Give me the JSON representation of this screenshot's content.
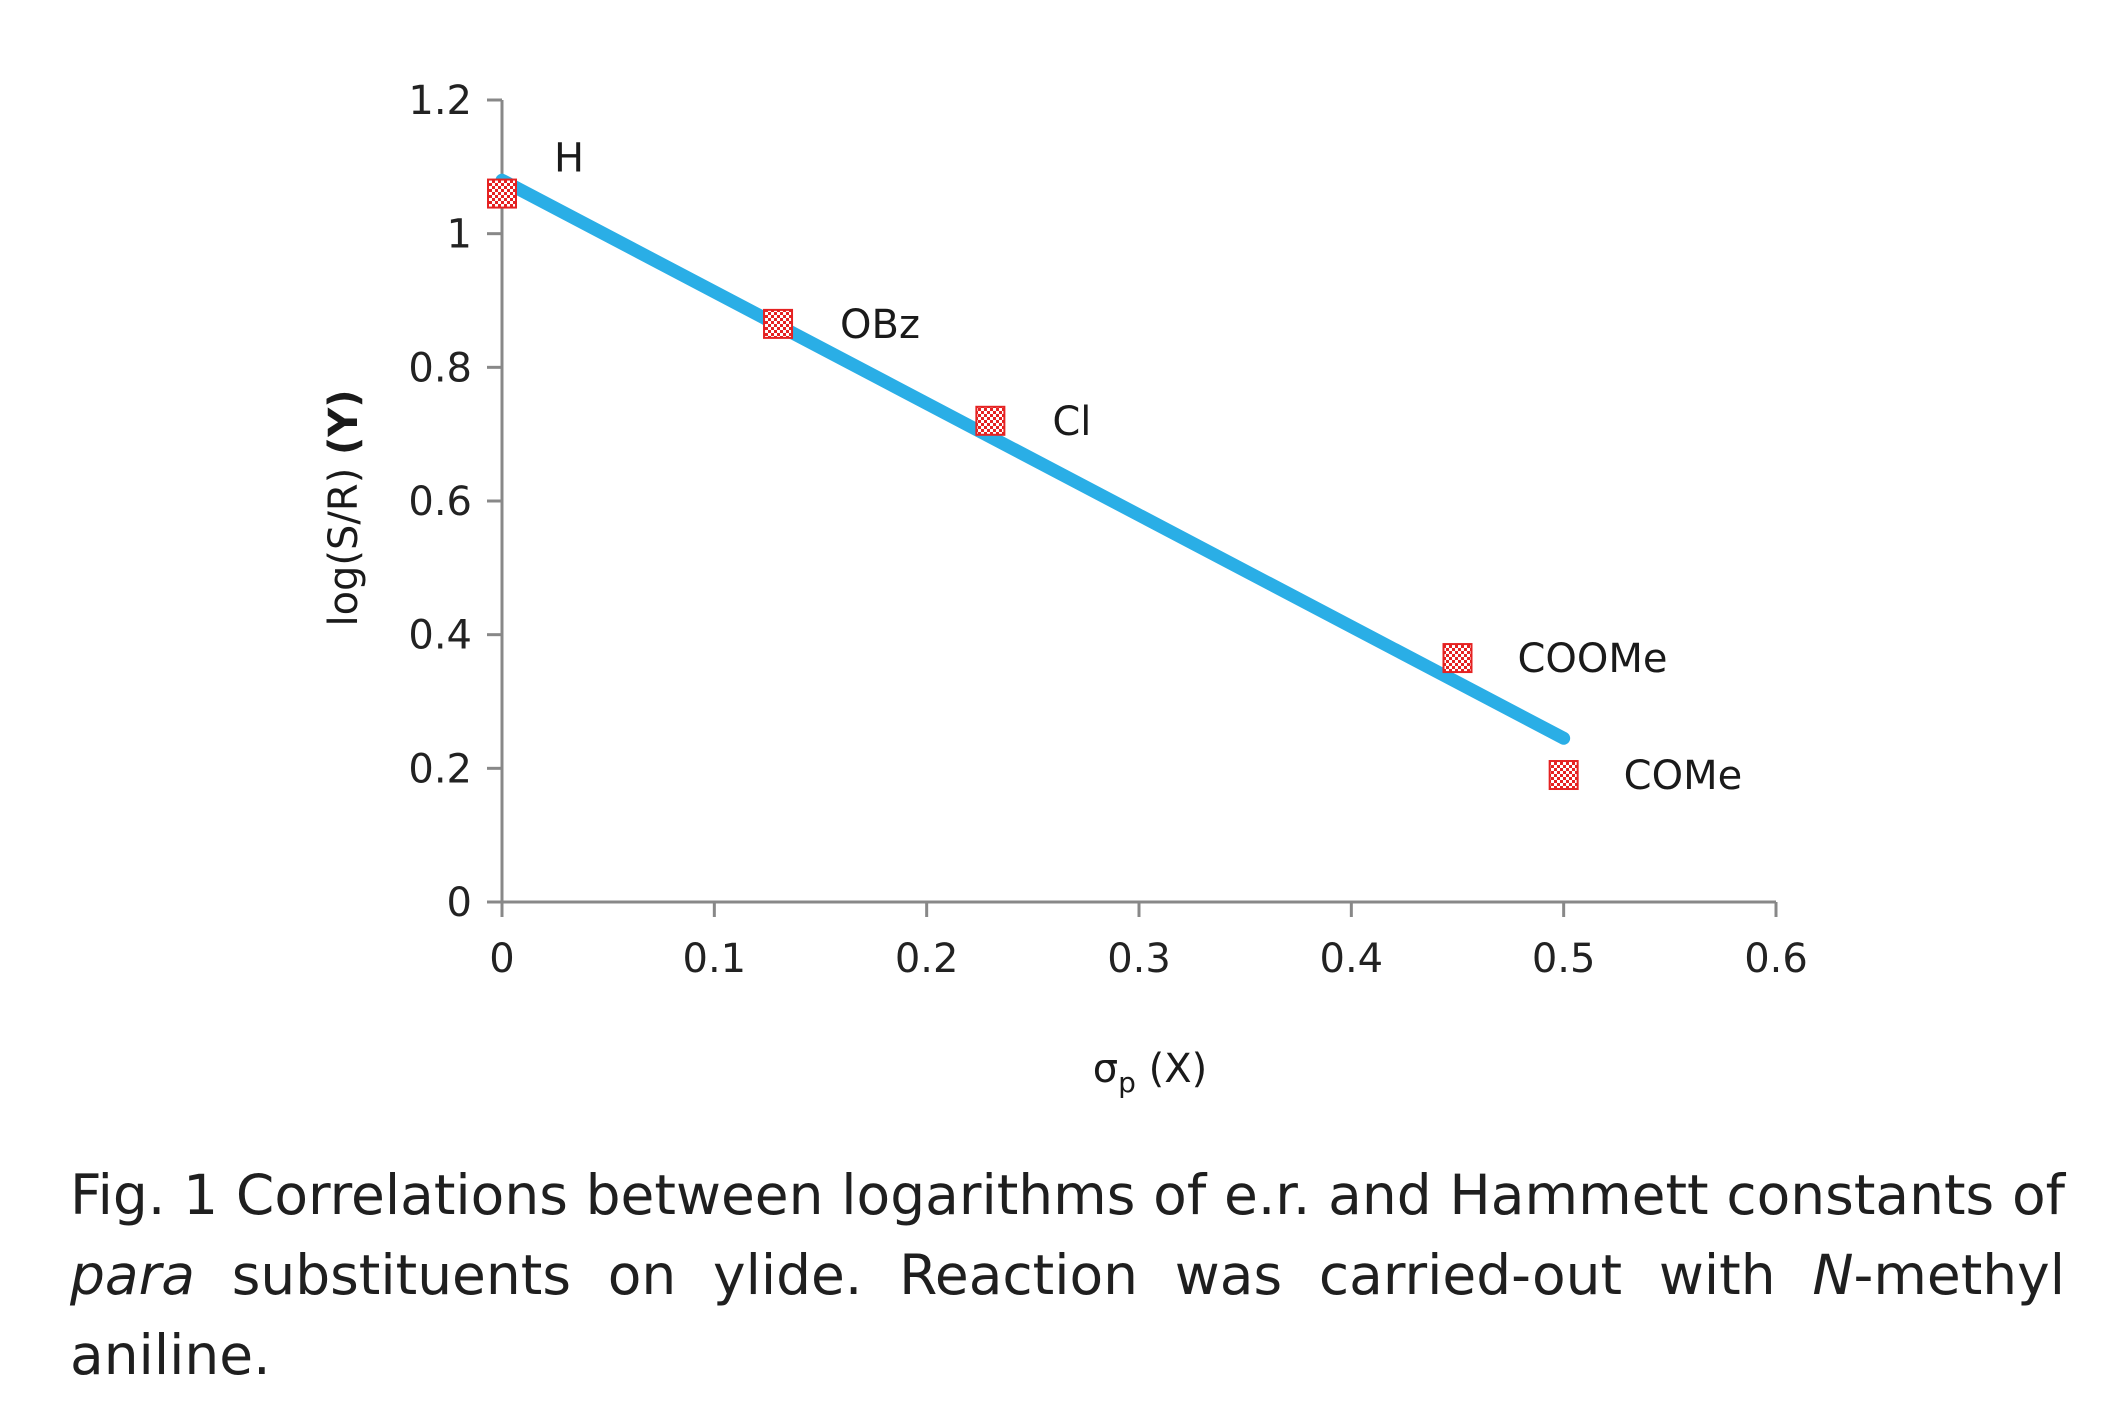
{
  "chart_data": {
    "type": "scatter",
    "xlabel_symbol": "σ",
    "xlabel_subscript": "p",
    "xlabel_suffix": " (X)",
    "ylabel_main": "log(S/R) ",
    "ylabel_bold": "(Y)",
    "xlim": [
      0,
      0.6
    ],
    "ylim": [
      0,
      1.2
    ],
    "x_ticks": [
      "0",
      "0.1",
      "0.2",
      "0.3",
      "0.4",
      "0.5",
      "0.6"
    ],
    "y_ticks": [
      "0",
      "0.2",
      "0.4",
      "0.6",
      "0.8",
      "1",
      "1.2"
    ],
    "points": [
      {
        "label": "H",
        "x": 0.0,
        "y": 1.06
      },
      {
        "label": "OBz",
        "x": 0.13,
        "y": 0.865
      },
      {
        "label": "Cl",
        "x": 0.23,
        "y": 0.72
      },
      {
        "label": "COOMe",
        "x": 0.45,
        "y": 0.365
      },
      {
        "label": "COMe",
        "x": 0.5,
        "y": 0.19
      }
    ],
    "trendline": {
      "x": [
        0.0,
        0.5
      ],
      "y": [
        1.08,
        0.245
      ]
    },
    "colors": {
      "line": "#2aaee6",
      "marker": "#e52222",
      "axis": "#888888"
    },
    "grid": false,
    "legend": "none"
  },
  "caption": {
    "fig_label": "Fig. 1",
    "text_1": " Correlations between logarithms of e.r. and Hammett constants of ",
    "italic_1": "para",
    "text_2": " substituents on ylide. Reaction was carried-out with ",
    "italic_2": "N",
    "text_3": "-methyl aniline."
  }
}
